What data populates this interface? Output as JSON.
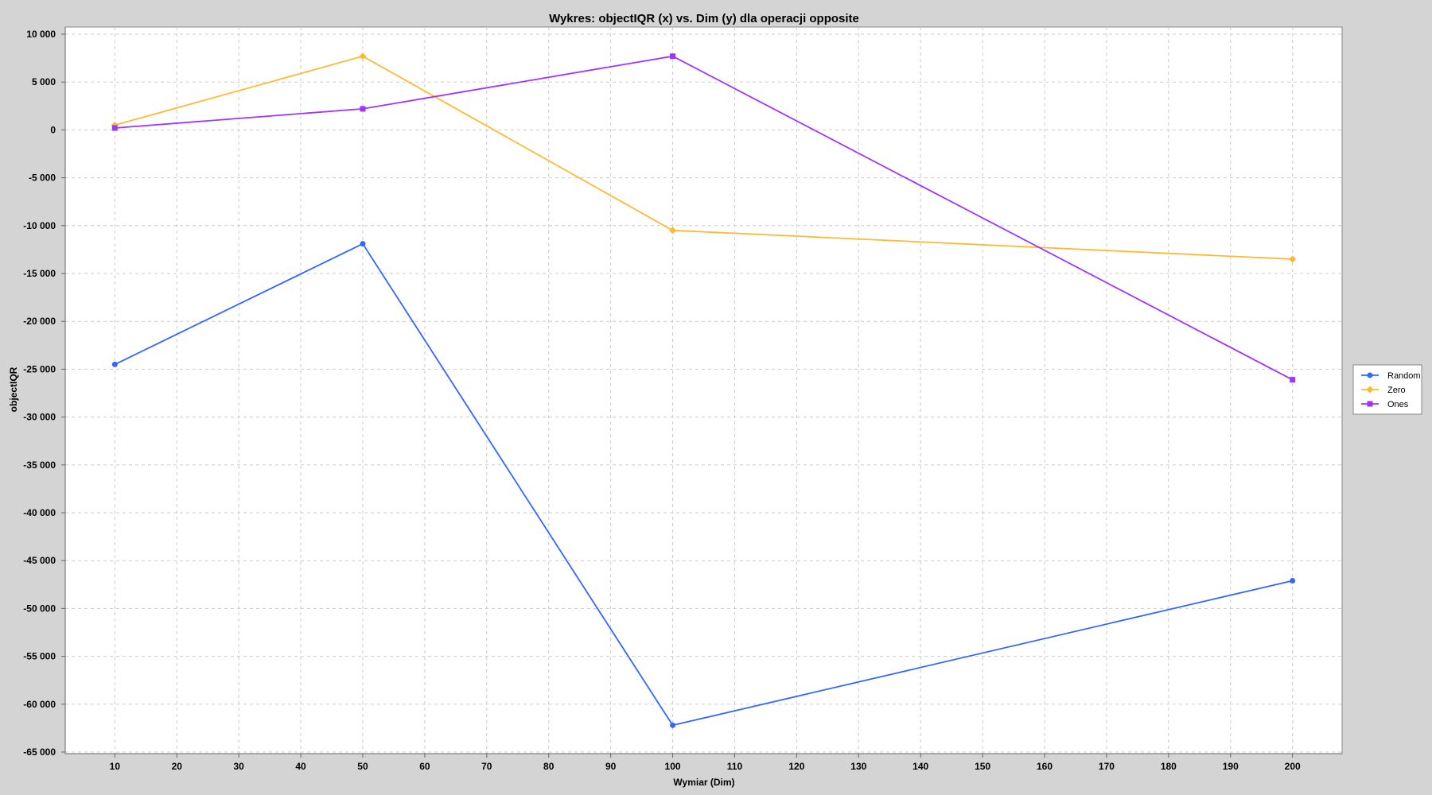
{
  "chart_data": {
    "type": "line",
    "title": "Wykres: objectIQR (x) vs. Dim (y) dla operacji opposite",
    "xlabel": "Wymiar (Dim)",
    "ylabel": "objectIQR",
    "xlim": [
      2,
      208
    ],
    "ylim": [
      -65000,
      10000
    ],
    "x_ticks": [
      10,
      20,
      30,
      40,
      50,
      60,
      70,
      80,
      90,
      100,
      110,
      120,
      130,
      140,
      150,
      160,
      170,
      180,
      190,
      200
    ],
    "y_ticks": [
      10000,
      5000,
      0,
      -5000,
      -10000,
      -15000,
      -20000,
      -25000,
      -30000,
      -35000,
      -40000,
      -45000,
      -50000,
      -55000,
      -60000,
      -65000
    ],
    "y_tick_labels": [
      "10 000",
      "5 000",
      "0",
      "-5 000",
      "-10 000",
      "-15 000",
      "-20 000",
      "-25 000",
      "-30 000",
      "-35 000",
      "-40 000",
      "-45 000",
      "-50 000",
      "-55 000",
      "-60 000",
      "-65 000"
    ],
    "grid": true,
    "legend_position": "right",
    "x": [
      10,
      50,
      100,
      200
    ],
    "series": [
      {
        "name": "Random",
        "color": "#3366ff",
        "marker": "circle",
        "values": [
          -24500,
          -11900,
          -62200,
          -47100
        ]
      },
      {
        "name": "Zero",
        "color": "#ffb833",
        "marker": "diamond",
        "values": [
          500,
          7700,
          -10500,
          -13500
        ]
      },
      {
        "name": "Ones",
        "color": "#a033ff",
        "marker": "square",
        "values": [
          200,
          2200,
          7700,
          -26100
        ]
      }
    ]
  }
}
